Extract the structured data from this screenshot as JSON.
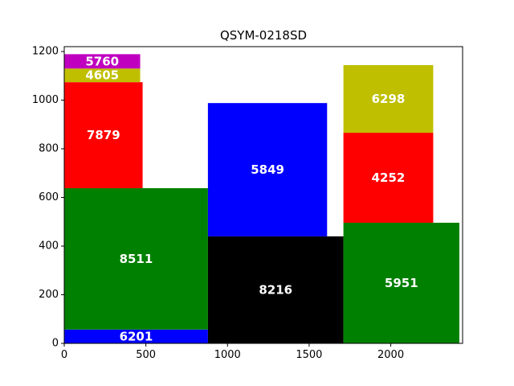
{
  "chart_data": {
    "type": "bar",
    "title": "QSYM-0218SD",
    "xlabel": "",
    "ylabel": "",
    "xlim": [
      0,
      2440
    ],
    "ylim": [
      0,
      1220
    ],
    "xticks": [
      0,
      500,
      1000,
      1500,
      2000
    ],
    "yticks": [
      0,
      200,
      400,
      600,
      800,
      1000,
      1200
    ],
    "grid": false,
    "rectangles": [
      {
        "label": "6201",
        "x0": 0,
        "x1": 880,
        "y0": 0,
        "y1": 57,
        "color": "#0000ff"
      },
      {
        "label": "8511",
        "x0": 0,
        "x1": 880,
        "y0": 57,
        "y1": 638,
        "color": "#008000"
      },
      {
        "label": "7879",
        "x0": 0,
        "x1": 480,
        "y0": 638,
        "y1": 1074,
        "color": "#ff0000"
      },
      {
        "label": "4605",
        "x0": 0,
        "x1": 465,
        "y0": 1074,
        "y1": 1130,
        "color": "#bfbf00"
      },
      {
        "label": "5760",
        "x0": 0,
        "x1": 465,
        "y0": 1130,
        "y1": 1189,
        "color": "#bf00bf"
      },
      {
        "label": "8216",
        "x0": 880,
        "x1": 1710,
        "y0": 0,
        "y1": 440,
        "color": "#000000"
      },
      {
        "label": "5849",
        "x0": 880,
        "x1": 1610,
        "y0": 440,
        "y1": 988,
        "color": "#0000ff"
      },
      {
        "label": "5951",
        "x0": 1710,
        "x1": 2420,
        "y0": 0,
        "y1": 496,
        "color": "#008000"
      },
      {
        "label": "4252",
        "x0": 1710,
        "x1": 2260,
        "y0": 496,
        "y1": 866,
        "color": "#ff0000"
      },
      {
        "label": "6298",
        "x0": 1710,
        "x1": 2260,
        "y0": 866,
        "y1": 1144,
        "color": "#bfbf00"
      }
    ]
  }
}
